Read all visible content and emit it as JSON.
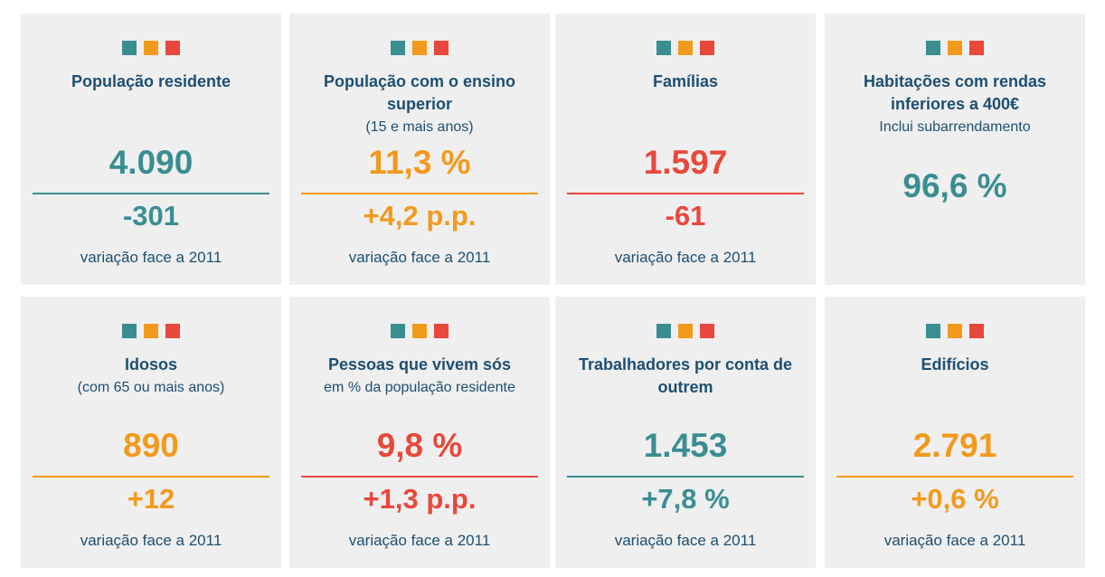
{
  "cards": [
    {
      "title": "População residente",
      "value": "4.090",
      "change": "-301",
      "note": "variação face a 2011",
      "color": "#3a8e92"
    },
    {
      "title": "População com o ensino superior",
      "subtitle": "(15 e mais anos)",
      "value": "11,3 %",
      "change": "+4,2 p.p.",
      "note": "variação face a 2011",
      "color": "#f29a1c"
    },
    {
      "title": "Famílias",
      "value": "1.597",
      "change": "-61",
      "note": "variação face a 2011",
      "color": "#e8483c"
    },
    {
      "title": "Habitações com rendas inferiores a 400€",
      "subtitle": "Inclui subarrendamento",
      "value": "96,6 %",
      "color": "#3a8e92"
    },
    {
      "title": "Idosos",
      "subtitle": "(com 65 ou mais anos)",
      "value": "890",
      "change": "+12",
      "note": "variação face a 2011",
      "color": "#f29a1c"
    },
    {
      "title": "Pessoas que vivem sós",
      "subtitle": "em % da população residente",
      "value": "9,8 %",
      "change": "+1,3 p.p.",
      "note": "variação face a 2011",
      "color": "#e8483c"
    },
    {
      "title": "Trabalhadores por conta de outrem",
      "value": "1.453",
      "change": "+7,8 %",
      "note": "variação face a 2011",
      "color": "#3a8e92"
    },
    {
      "title": "Edifícios",
      "value": "2.791",
      "change": "+0,6 %",
      "note": "variação face a 2011",
      "color": "#f29a1c"
    }
  ]
}
